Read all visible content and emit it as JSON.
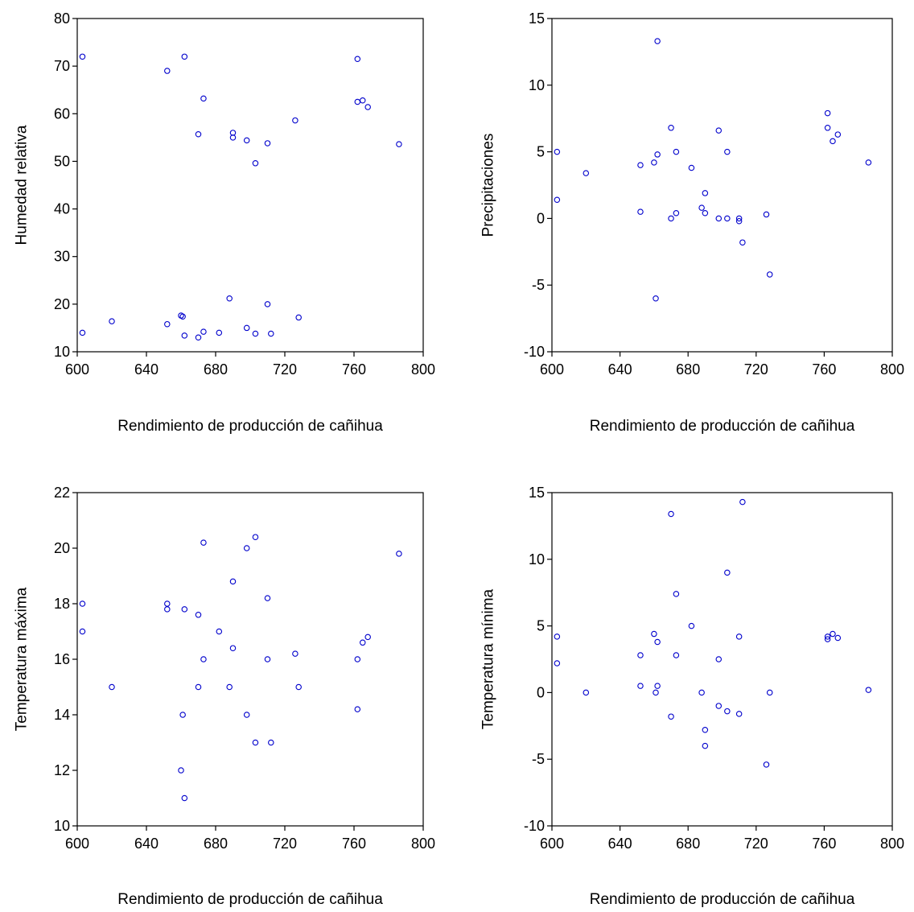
{
  "chart_data": [
    {
      "type": "scatter",
      "xlabel": "Rendimiento de producción de cañihua",
      "ylabel": "Humedad relativa",
      "xlim": [
        600,
        800
      ],
      "ylim": [
        10,
        80
      ],
      "xticks": [
        "600",
        "640",
        "680",
        "720",
        "760",
        "800"
      ],
      "yticks": [
        "10",
        "20",
        "30",
        "40",
        "50",
        "60",
        "70",
        "80"
      ],
      "point_color": "#0000cc",
      "points": [
        [
          603,
          72.0
        ],
        [
          603,
          14.0
        ],
        [
          620,
          16.4
        ],
        [
          652,
          69.0
        ],
        [
          652,
          15.8
        ],
        [
          660,
          17.6
        ],
        [
          661,
          17.4
        ],
        [
          662,
          72.0
        ],
        [
          662,
          13.4
        ],
        [
          670,
          55.7
        ],
        [
          670,
          13.0
        ],
        [
          673,
          63.2
        ],
        [
          673,
          14.2
        ],
        [
          682,
          14.0
        ],
        [
          688,
          21.2
        ],
        [
          690,
          56.0
        ],
        [
          690,
          55.0
        ],
        [
          698,
          54.4
        ],
        [
          698,
          15.0
        ],
        [
          703,
          49.6
        ],
        [
          703,
          13.8
        ],
        [
          710,
          53.8
        ],
        [
          710,
          20.0
        ],
        [
          712,
          13.8
        ],
        [
          726,
          58.6
        ],
        [
          728,
          17.2
        ],
        [
          762,
          71.5
        ],
        [
          762,
          62.5
        ],
        [
          765,
          62.8
        ],
        [
          768,
          61.4
        ],
        [
          786,
          53.6
        ]
      ]
    },
    {
      "type": "scatter",
      "xlabel": "Rendimiento de producción de cañihua",
      "ylabel": "Precipitaciones",
      "xlim": [
        600,
        800
      ],
      "ylim": [
        -10,
        15
      ],
      "xticks": [
        "600",
        "640",
        "680",
        "720",
        "760",
        "800"
      ],
      "yticks": [
        "-10",
        "-5",
        "0",
        "5",
        "10",
        "15"
      ],
      "point_color": "#0000cc",
      "points": [
        [
          603,
          5.0
        ],
        [
          603,
          1.4
        ],
        [
          620,
          3.4
        ],
        [
          652,
          4.0
        ],
        [
          652,
          0.5
        ],
        [
          660,
          4.2
        ],
        [
          661,
          -6.0
        ],
        [
          662,
          4.8
        ],
        [
          662,
          13.3
        ],
        [
          670,
          6.8
        ],
        [
          670,
          0.0
        ],
        [
          673,
          5.0
        ],
        [
          673,
          0.4
        ],
        [
          682,
          3.8
        ],
        [
          688,
          0.8
        ],
        [
          690,
          1.9
        ],
        [
          690,
          0.4
        ],
        [
          698,
          6.6
        ],
        [
          698,
          0.0
        ],
        [
          703,
          5.0
        ],
        [
          703,
          0.0
        ],
        [
          710,
          0.0
        ],
        [
          710,
          -0.2
        ],
        [
          712,
          -1.8
        ],
        [
          726,
          0.3
        ],
        [
          728,
          -4.2
        ],
        [
          762,
          7.9
        ],
        [
          762,
          6.8
        ],
        [
          765,
          5.8
        ],
        [
          768,
          6.3
        ],
        [
          786,
          4.2
        ]
      ]
    },
    {
      "type": "scatter",
      "xlabel": "Rendimiento de producción de cañihua",
      "ylabel": "Temperatura máxima",
      "xlim": [
        600,
        800
      ],
      "ylim": [
        10,
        22
      ],
      "xticks": [
        "600",
        "640",
        "680",
        "720",
        "760",
        "800"
      ],
      "yticks": [
        "10",
        "12",
        "14",
        "16",
        "18",
        "20",
        "22"
      ],
      "point_color": "#0000cc",
      "points": [
        [
          603,
          18.0
        ],
        [
          603,
          17.0
        ],
        [
          620,
          15.0
        ],
        [
          652,
          18.0
        ],
        [
          652,
          17.8
        ],
        [
          660,
          12.0
        ],
        [
          661,
          14.0
        ],
        [
          662,
          17.8
        ],
        [
          662,
          11.0
        ],
        [
          670,
          17.6
        ],
        [
          670,
          15.0
        ],
        [
          673,
          20.2
        ],
        [
          673,
          16.0
        ],
        [
          682,
          17.0
        ],
        [
          688,
          15.0
        ],
        [
          690,
          18.8
        ],
        [
          690,
          16.4
        ],
        [
          698,
          20.0
        ],
        [
          698,
          14.0
        ],
        [
          703,
          20.4
        ],
        [
          703,
          13.0
        ],
        [
          710,
          18.2
        ],
        [
          710,
          16.0
        ],
        [
          712,
          13.0
        ],
        [
          726,
          16.2
        ],
        [
          728,
          15.0
        ],
        [
          762,
          16.0
        ],
        [
          762,
          14.2
        ],
        [
          765,
          16.6
        ],
        [
          768,
          16.8
        ],
        [
          786,
          19.8
        ]
      ]
    },
    {
      "type": "scatter",
      "xlabel": "Rendimiento de producción de cañihua",
      "ylabel": "Temperatura mínima",
      "xlim": [
        600,
        800
      ],
      "ylim": [
        -10,
        15
      ],
      "xticks": [
        "600",
        "640",
        "680",
        "720",
        "760",
        "800"
      ],
      "yticks": [
        "-10",
        "-5",
        "0",
        "5",
        "10",
        "15"
      ],
      "point_color": "#0000cc",
      "points": [
        [
          603,
          4.2
        ],
        [
          603,
          2.2
        ],
        [
          620,
          0.0
        ],
        [
          652,
          2.8
        ],
        [
          652,
          0.5
        ],
        [
          660,
          4.4
        ],
        [
          661,
          0.0
        ],
        [
          662,
          3.8
        ],
        [
          662,
          0.5
        ],
        [
          670,
          13.4
        ],
        [
          670,
          -1.8
        ],
        [
          673,
          7.4
        ],
        [
          673,
          2.8
        ],
        [
          682,
          5.0
        ],
        [
          688,
          0.0
        ],
        [
          690,
          -2.8
        ],
        [
          690,
          -4.0
        ],
        [
          698,
          2.5
        ],
        [
          698,
          -1.0
        ],
        [
          703,
          9.0
        ],
        [
          703,
          -1.4
        ],
        [
          710,
          4.2
        ],
        [
          710,
          -1.6
        ],
        [
          712,
          14.3
        ],
        [
          726,
          -5.4
        ],
        [
          728,
          0.0
        ],
        [
          762,
          4.2
        ],
        [
          762,
          4.0
        ],
        [
          765,
          4.4
        ],
        [
          768,
          4.1
        ],
        [
          786,
          0.2
        ]
      ]
    }
  ]
}
